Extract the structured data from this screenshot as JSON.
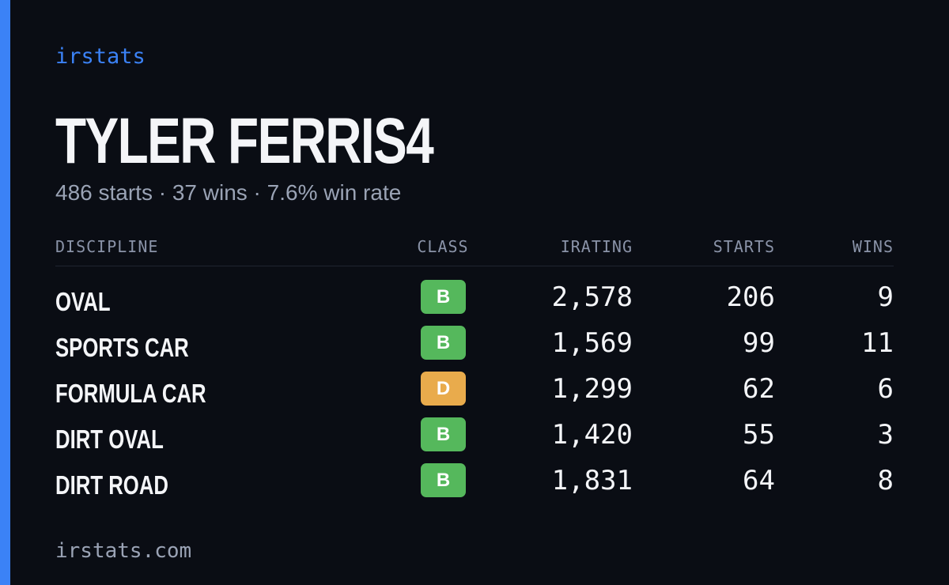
{
  "brand": "irstats",
  "name": "TYLER FERRIS4",
  "summary": "486 starts · 37 wins · 7.6% win rate",
  "table": {
    "headers": [
      "DISCIPLINE",
      "CLASS",
      "IRATING",
      "STARTS",
      "WINS"
    ],
    "rows": [
      [
        "OVAL",
        "B",
        "2,578",
        "206",
        "9"
      ],
      [
        "SPORTS CAR",
        "B",
        "1,569",
        "99",
        "11"
      ],
      [
        "FORMULA CAR",
        "D",
        "1,299",
        "62",
        "6"
      ],
      [
        "DIRT OVAL",
        "B",
        "1,420",
        "55",
        "3"
      ],
      [
        "DIRT ROAD",
        "B",
        "1,831",
        "64",
        "8"
      ]
    ]
  },
  "class_colors": {
    "B": "#55b85c",
    "D": "#e9ab4c"
  },
  "footer": "irstats.com"
}
